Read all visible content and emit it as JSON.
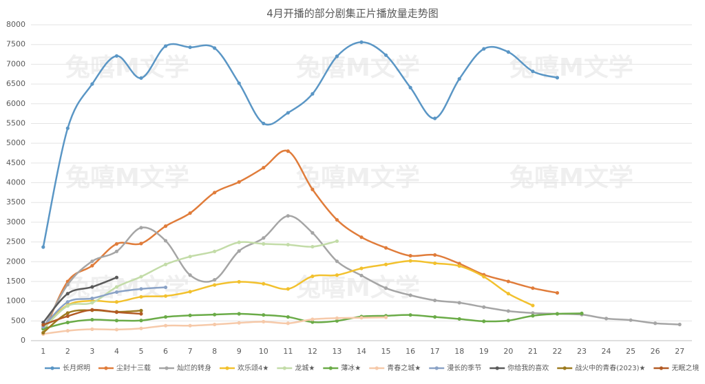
{
  "chart_data": {
    "type": "line",
    "title": "4月开播的部分剧集正片播放量走势图",
    "watermark": "兔嘻M文学",
    "categories": [
      1,
      2,
      3,
      4,
      5,
      6,
      7,
      8,
      9,
      10,
      11,
      12,
      13,
      14,
      15,
      16,
      17,
      18,
      19,
      20,
      21,
      22,
      23,
      24,
      25,
      26,
      27
    ],
    "ylim": [
      0,
      8000
    ],
    "yticks": [
      0,
      500,
      1000,
      1500,
      2000,
      2500,
      3000,
      3500,
      4000,
      4500,
      5000,
      5500,
      6000,
      6500,
      7000,
      7500,
      8000
    ],
    "grid": true,
    "legend": "bottom",
    "series": [
      {
        "name": "长月烬明",
        "color": "#5a96c5",
        "values": [
          2370,
          5380,
          6500,
          7210,
          6650,
          7460,
          7430,
          7410,
          6520,
          5500,
          5770,
          6250,
          7200,
          7560,
          7230,
          6410,
          5630,
          6630,
          7390,
          7310,
          6820,
          6660,
          null,
          null,
          null,
          null,
          null
        ]
      },
      {
        "name": "尘封十三载",
        "color": "#e07c3a",
        "values": [
          170,
          1500,
          1900,
          2450,
          2460,
          2900,
          3230,
          3750,
          4020,
          4380,
          4800,
          3830,
          3060,
          2620,
          2350,
          2150,
          2170,
          1950,
          1670,
          1500,
          1330,
          1210,
          null,
          null,
          null,
          null,
          null
        ]
      },
      {
        "name": "灿烂的转身",
        "color": "#a5a5a5",
        "values": [
          300,
          1420,
          2010,
          2260,
          2860,
          2530,
          1660,
          1540,
          2270,
          2600,
          3160,
          2730,
          2010,
          1650,
          1330,
          1150,
          1020,
          960,
          850,
          750,
          700,
          680,
          660,
          560,
          520,
          440,
          410
        ]
      },
      {
        "name": "欢乐颂4★",
        "color": "#f2c12e",
        "values": [
          350,
          900,
          1010,
          980,
          1110,
          1130,
          1240,
          1410,
          1490,
          1440,
          1310,
          1630,
          1660,
          1830,
          1930,
          2020,
          1960,
          1890,
          1620,
          1190,
          890,
          null,
          null,
          null,
          null,
          null,
          null
        ]
      },
      {
        "name": "龙城★",
        "color": "#c3dca8",
        "values": [
          300,
          880,
          960,
          1360,
          1620,
          1930,
          2130,
          2260,
          2490,
          2450,
          2430,
          2380,
          2520,
          null,
          null,
          null,
          null,
          null,
          null,
          null,
          null,
          null,
          null,
          null,
          null,
          null,
          null
        ]
      },
      {
        "name": "薄冰★",
        "color": "#6aab47",
        "values": [
          300,
          460,
          530,
          510,
          510,
          600,
          640,
          660,
          680,
          650,
          600,
          470,
          500,
          610,
          630,
          650,
          600,
          550,
          490,
          510,
          630,
          680,
          690,
          null,
          null,
          null,
          null
        ]
      },
      {
        "name": "青春之城★",
        "color": "#f6c9a9",
        "values": [
          170,
          250,
          290,
          280,
          310,
          380,
          380,
          410,
          450,
          480,
          440,
          540,
          570,
          580,
          590,
          null,
          null,
          null,
          null,
          null,
          null,
          null,
          null,
          null,
          null,
          null,
          null
        ]
      },
      {
        "name": "漫长的季节",
        "color": "#8aa2c6",
        "values": [
          350,
          980,
          1070,
          1230,
          1310,
          1350,
          null,
          null,
          null,
          null,
          null,
          null,
          null,
          null,
          null,
          null,
          null,
          null,
          null,
          null,
          null,
          null,
          null,
          null,
          null,
          null,
          null
        ]
      },
      {
        "name": "你给我的喜欢",
        "color": "#5a5a5a",
        "values": [
          460,
          1190,
          1360,
          1600,
          null,
          null,
          null,
          null,
          null,
          null,
          null,
          null,
          null,
          null,
          null,
          null,
          null,
          null,
          null,
          null,
          null,
          null,
          null,
          null,
          null,
          null,
          null
        ]
      },
      {
        "name": "战火中的青春(2023)★",
        "color": "#9c7a1e",
        "values": [
          200,
          700,
          770,
          730,
          760,
          null,
          null,
          null,
          null,
          null,
          null,
          null,
          null,
          null,
          null,
          null,
          null,
          null,
          null,
          null,
          null,
          null,
          null,
          null,
          null,
          null,
          null
        ]
      },
      {
        "name": "无眠之境",
        "color": "#b25a24",
        "values": [
          400,
          620,
          780,
          720,
          680,
          null,
          null,
          null,
          null,
          null,
          null,
          null,
          null,
          null,
          null,
          null,
          null,
          null,
          null,
          null,
          null,
          null,
          null,
          null,
          null,
          null,
          null
        ]
      }
    ]
  }
}
